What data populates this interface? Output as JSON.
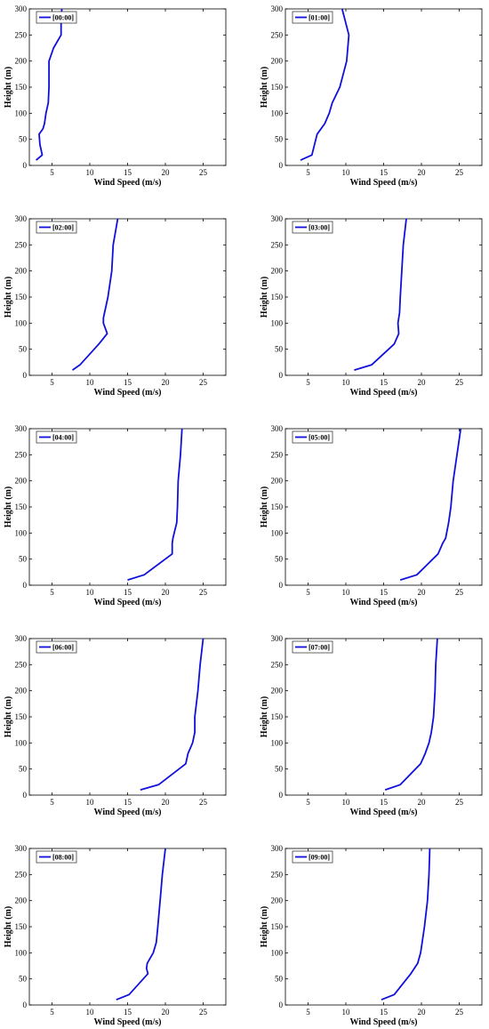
{
  "colors": {
    "series": "#1010dd",
    "axis": "#000000",
    "background": "#ffffff"
  },
  "chart_data": [
    {
      "type": "line",
      "legend": "[00:00]",
      "legend_position": "top-left",
      "xlabel": "Wind Speed (m/s)",
      "ylabel": "Height (m)",
      "xlim": [
        2,
        28
      ],
      "ylim": [
        0,
        300
      ],
      "xticks": [
        5,
        10,
        15,
        20,
        25
      ],
      "yticks": [
        0,
        50,
        100,
        150,
        200,
        250,
        300
      ],
      "series": [
        {
          "values": [
            [
              2.9,
              10
            ],
            [
              3.7,
              20
            ],
            [
              3.4,
              40
            ],
            [
              3.3,
              60
            ],
            [
              3.8,
              70
            ],
            [
              4.0,
              80
            ],
            [
              4.2,
              100
            ],
            [
              4.5,
              120
            ],
            [
              4.6,
              150
            ],
            [
              4.6,
              200
            ],
            [
              5.2,
              225
            ],
            [
              6.2,
              250
            ],
            [
              6.2,
              275
            ],
            [
              6.3,
              300
            ]
          ]
        }
      ]
    },
    {
      "type": "line",
      "legend": "[01:00]",
      "legend_position": "top-left",
      "xlabel": "Wind Speed (m/s)",
      "ylabel": "Height (m)",
      "xlim": [
        2,
        28
      ],
      "ylim": [
        0,
        300
      ],
      "xticks": [
        5,
        10,
        15,
        20,
        25
      ],
      "yticks": [
        0,
        50,
        100,
        150,
        200,
        250,
        300
      ],
      "series": [
        {
          "values": [
            [
              4.0,
              10
            ],
            [
              5.5,
              20
            ],
            [
              6.2,
              60
            ],
            [
              7.2,
              80
            ],
            [
              7.8,
              100
            ],
            [
              8.2,
              120
            ],
            [
              9.2,
              150
            ],
            [
              10.1,
              200
            ],
            [
              10.4,
              250
            ],
            [
              9.5,
              300
            ]
          ]
        }
      ]
    },
    {
      "type": "line",
      "legend": "[02:00]",
      "legend_position": "top-left",
      "xlabel": "Wind Speed (m/s)",
      "ylabel": "Height (m)",
      "xlim": [
        2,
        28
      ],
      "ylim": [
        0,
        300
      ],
      "xticks": [
        5,
        10,
        15,
        20,
        25
      ],
      "yticks": [
        0,
        50,
        100,
        150,
        200,
        250,
        300
      ],
      "series": [
        {
          "values": [
            [
              7.7,
              10
            ],
            [
              8.7,
              20
            ],
            [
              11.2,
              60
            ],
            [
              12.3,
              80
            ],
            [
              11.8,
              100
            ],
            [
              11.8,
              110
            ],
            [
              12.4,
              150
            ],
            [
              12.9,
              200
            ],
            [
              13.1,
              250
            ],
            [
              13.7,
              300
            ]
          ]
        }
      ]
    },
    {
      "type": "line",
      "legend": "[03:00]",
      "legend_position": "top-left",
      "xlabel": "Wind Speed (m/s)",
      "ylabel": "Height (m)",
      "xlim": [
        2,
        28
      ],
      "ylim": [
        0,
        300
      ],
      "xticks": [
        5,
        10,
        15,
        20,
        25
      ],
      "yticks": [
        0,
        50,
        100,
        150,
        200,
        250,
        300
      ],
      "series": [
        {
          "values": [
            [
              11.1,
              10
            ],
            [
              13.4,
              20
            ],
            [
              16.4,
              60
            ],
            [
              17.0,
              80
            ],
            [
              16.9,
              100
            ],
            [
              17.1,
              120
            ],
            [
              17.2,
              150
            ],
            [
              17.4,
              200
            ],
            [
              17.6,
              250
            ],
            [
              18.0,
              300
            ]
          ]
        }
      ]
    },
    {
      "type": "line",
      "legend": "[04:00]",
      "legend_position": "top-left",
      "xlabel": "Wind Speed (m/s)",
      "ylabel": "Height (m)",
      "xlim": [
        2,
        28
      ],
      "ylim": [
        0,
        300
      ],
      "xticks": [
        5,
        10,
        15,
        20,
        25
      ],
      "yticks": [
        0,
        50,
        100,
        150,
        200,
        250,
        300
      ],
      "series": [
        {
          "values": [
            [
              15.0,
              10
            ],
            [
              17.2,
              20
            ],
            [
              20.9,
              60
            ],
            [
              20.9,
              80
            ],
            [
              21.0,
              90
            ],
            [
              21.5,
              120
            ],
            [
              21.6,
              150
            ],
            [
              21.7,
              200
            ],
            [
              22.0,
              250
            ],
            [
              22.2,
              300
            ]
          ]
        }
      ]
    },
    {
      "type": "line",
      "legend": "[05:00]",
      "legend_position": "top-left",
      "xlabel": "Wind Speed (m/s)",
      "ylabel": "Height (m)",
      "xlim": [
        2,
        28
      ],
      "ylim": [
        0,
        300
      ],
      "xticks": [
        5,
        10,
        15,
        20,
        25
      ],
      "yticks": [
        0,
        50,
        100,
        150,
        200,
        250,
        300
      ],
      "series": [
        {
          "values": [
            [
              17.2,
              10
            ],
            [
              19.4,
              20
            ],
            [
              22.2,
              60
            ],
            [
              22.8,
              80
            ],
            [
              23.2,
              90
            ],
            [
              23.6,
              120
            ],
            [
              23.9,
              150
            ],
            [
              24.2,
              200
            ],
            [
              24.7,
              250
            ],
            [
              25.2,
              300
            ]
          ]
        }
      ]
    },
    {
      "type": "line",
      "legend": "[06:00]",
      "legend_position": "top-left",
      "xlabel": "Wind Speed (m/s)",
      "ylabel": "Height (m)",
      "xlim": [
        2,
        28
      ],
      "ylim": [
        0,
        300
      ],
      "xticks": [
        5,
        10,
        15,
        20,
        25
      ],
      "yticks": [
        0,
        50,
        100,
        150,
        200,
        250,
        300
      ],
      "series": [
        {
          "values": [
            [
              16.7,
              10
            ],
            [
              19.1,
              20
            ],
            [
              22.7,
              60
            ],
            [
              23.0,
              80
            ],
            [
              23.6,
              100
            ],
            [
              23.9,
              120
            ],
            [
              23.9,
              150
            ],
            [
              24.3,
              200
            ],
            [
              24.6,
              250
            ],
            [
              25.0,
              300
            ]
          ]
        }
      ]
    },
    {
      "type": "line",
      "legend": "[07:00]",
      "legend_position": "top-left",
      "xlabel": "Wind Speed (m/s)",
      "ylabel": "Height (m)",
      "xlim": [
        2,
        28
      ],
      "ylim": [
        0,
        300
      ],
      "xticks": [
        5,
        10,
        15,
        20,
        25
      ],
      "yticks": [
        0,
        50,
        100,
        150,
        200,
        250,
        300
      ],
      "series": [
        {
          "values": [
            [
              15.2,
              10
            ],
            [
              17.2,
              20
            ],
            [
              19.9,
              60
            ],
            [
              20.5,
              80
            ],
            [
              21.0,
              100
            ],
            [
              21.3,
              120
            ],
            [
              21.6,
              150
            ],
            [
              21.8,
              200
            ],
            [
              21.9,
              250
            ],
            [
              22.1,
              300
            ]
          ]
        }
      ]
    },
    {
      "type": "line",
      "legend": "[08:00]",
      "legend_position": "top-left",
      "xlabel": "Wind Speed (m/s)",
      "ylabel": "Height (m)",
      "xlim": [
        2,
        28
      ],
      "ylim": [
        0,
        300
      ],
      "xticks": [
        5,
        10,
        15,
        20,
        25
      ],
      "yticks": [
        0,
        50,
        100,
        150,
        200,
        250,
        300
      ],
      "series": [
        {
          "values": [
            [
              13.5,
              10
            ],
            [
              15.2,
              20
            ],
            [
              17.7,
              60
            ],
            [
              17.5,
              70
            ],
            [
              17.6,
              80
            ],
            [
              18.0,
              90
            ],
            [
              18.4,
              100
            ],
            [
              18.8,
              120
            ],
            [
              19.0,
              150
            ],
            [
              19.3,
              200
            ],
            [
              19.6,
              250
            ],
            [
              20.0,
              300
            ]
          ]
        }
      ]
    },
    {
      "type": "line",
      "legend": "[09:00]",
      "legend_position": "top-left",
      "xlabel": "Wind Speed (m/s)",
      "ylabel": "Height (m)",
      "xlim": [
        2,
        28
      ],
      "ylim": [
        0,
        300
      ],
      "xticks": [
        5,
        10,
        15,
        20,
        25
      ],
      "yticks": [
        0,
        50,
        100,
        150,
        200,
        250,
        300
      ],
      "series": [
        {
          "values": [
            [
              14.7,
              10
            ],
            [
              16.4,
              20
            ],
            [
              18.6,
              60
            ],
            [
              19.5,
              80
            ],
            [
              19.9,
              100
            ],
            [
              20.4,
              150
            ],
            [
              20.8,
              200
            ],
            [
              21.0,
              250
            ],
            [
              21.1,
              300
            ]
          ]
        }
      ]
    }
  ]
}
